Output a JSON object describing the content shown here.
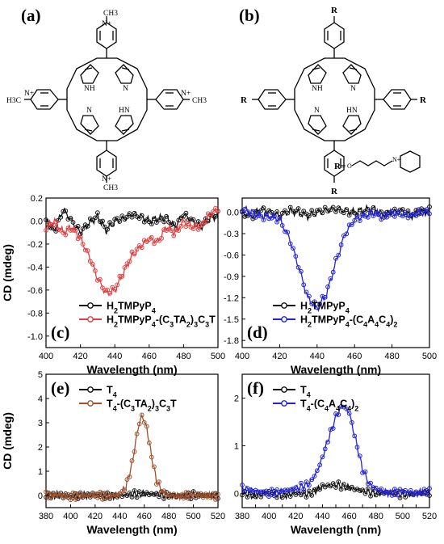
{
  "panels": {
    "a": "(a)",
    "b": "(b)",
    "c": "(c)",
    "d": "(d)",
    "e": "(e)",
    "f": "(f)"
  },
  "structure_labels": {
    "a": {
      "top_me": "CH3",
      "top_n": "N+",
      "left_me": "H3C",
      "left_n": "N+",
      "right_n": "N+",
      "right_me": "CH3",
      "bottom_n": "N+",
      "bottom_me": "CH3",
      "nh1": "NH",
      "n1": "N",
      "hn": "HN",
      "n2": "N"
    },
    "b": {
      "r_top": "R",
      "r_left": "R",
      "r_right": "R",
      "r_bottom": "R",
      "nh1": "NH",
      "n1": "N",
      "hn": "HN",
      "n2": "N",
      "r_def": "R=",
      "o": "O",
      "n_plus": "N+"
    }
  },
  "colors": {
    "black_series": "#111111",
    "red_series": "#e04040",
    "blue_series": "#2222dd",
    "brown_series": "#a0522d"
  },
  "chart_data": [
    {
      "id": "c",
      "type": "line",
      "xlabel": "Wavelength (nm)",
      "ylabel": "CD (mdeg)",
      "xlim": [
        400,
        500
      ],
      "ylim": [
        -1.1,
        0.2
      ],
      "xticks": [
        "400",
        "420",
        "440",
        "460",
        "480",
        "500"
      ],
      "yticks": [
        "0.2",
        "0.0",
        "-0.2",
        "-0.4",
        "-0.6",
        "-0.8",
        "-1.0"
      ],
      "legend_position": "bottom-left",
      "series": [
        {
          "name": "H2TMPyP4",
          "color": "#111111",
          "x": [
            400,
            405,
            410,
            415,
            420,
            425,
            430,
            435,
            440,
            445,
            450,
            455,
            460,
            465,
            470,
            475,
            480,
            485,
            490,
            495,
            500
          ],
          "y": [
            0.0,
            -0.08,
            0.1,
            0.0,
            -0.1,
            -0.02,
            0.04,
            -0.08,
            0.0,
            0.02,
            0.06,
            0.04,
            0.0,
            0.02,
            0.03,
            -0.05,
            0.06,
            0.0,
            -0.05,
            0.02,
            0.05
          ]
        },
        {
          "name": "H2TMPyP4-(C3TA2)3C3T",
          "color": "#e04040",
          "x": [
            400,
            405,
            410,
            415,
            420,
            425,
            430,
            435,
            440,
            445,
            450,
            455,
            460,
            465,
            470,
            475,
            480,
            485,
            490,
            495,
            500
          ],
          "y": [
            -0.05,
            0.0,
            -0.1,
            -0.05,
            -0.15,
            -0.3,
            -0.5,
            -0.63,
            -0.6,
            -0.45,
            -0.3,
            -0.22,
            -0.15,
            -0.18,
            -0.05,
            -0.1,
            0.0,
            -0.05,
            -0.05,
            0.05,
            0.1
          ]
        }
      ]
    },
    {
      "id": "d",
      "type": "line",
      "xlabel": "Wavelength (nm)",
      "ylabel": "",
      "xlim": [
        400,
        500
      ],
      "ylim": [
        -1.9,
        0.2
      ],
      "xticks": [
        "400",
        "420",
        "440",
        "460",
        "480",
        "500"
      ],
      "yticks": [
        "0.0",
        "-0.3",
        "-0.6",
        "-0.9",
        "-1.2",
        "-1.5",
        "-1.8"
      ],
      "legend_position": "bottom-left",
      "series": [
        {
          "name": "H2TMPyP4",
          "color": "#111111",
          "x": [
            400,
            405,
            410,
            415,
            420,
            425,
            430,
            435,
            440,
            445,
            450,
            455,
            460,
            465,
            470,
            475,
            480,
            485,
            490,
            495,
            500
          ],
          "y": [
            0.0,
            -0.05,
            0.05,
            0.0,
            -0.05,
            0.02,
            0.0,
            -0.05,
            0.0,
            0.03,
            0.05,
            0.02,
            0.0,
            0.03,
            0.05,
            -0.03,
            0.0,
            0.02,
            -0.05,
            0.0,
            0.02
          ]
        },
        {
          "name": "H2TMPyP4-(C4A4C4)2",
          "color": "#2222dd",
          "x": [
            400,
            405,
            410,
            415,
            420,
            425,
            430,
            435,
            440,
            445,
            450,
            455,
            460,
            465,
            470,
            475,
            480,
            485,
            490,
            495,
            500
          ],
          "y": [
            0.05,
            0.0,
            -0.05,
            -0.05,
            -0.1,
            -0.35,
            -0.75,
            -1.2,
            -1.35,
            -1.15,
            -0.7,
            -0.3,
            -0.1,
            -0.05,
            0.0,
            -0.05,
            0.0,
            -0.02,
            -0.05,
            0.0,
            0.0
          ]
        }
      ]
    },
    {
      "id": "e",
      "type": "line",
      "xlabel": "Wavelength (nm)",
      "ylabel": "CD (mdeg)",
      "xlim": [
        380,
        520
      ],
      "ylim": [
        -0.5,
        5
      ],
      "xticks": [
        "380",
        "400",
        "420",
        "440",
        "460",
        "480",
        "500",
        "520"
      ],
      "yticks": [
        "0",
        "1",
        "2",
        "3",
        "4",
        "5"
      ],
      "legend_position": "top-left",
      "series": [
        {
          "name": "T4",
          "color": "#111111",
          "x": [
            380,
            390,
            400,
            410,
            420,
            430,
            440,
            450,
            460,
            470,
            480,
            490,
            500,
            510,
            520
          ],
          "y": [
            0.0,
            0.02,
            -0.03,
            0.0,
            0.03,
            -0.02,
            0.0,
            0.05,
            0.08,
            0.05,
            0.0,
            -0.03,
            0.02,
            0.0,
            0.01
          ]
        },
        {
          "name": "T4-(C3TA2)3C3T",
          "color": "#a0522d",
          "x": [
            380,
            390,
            400,
            410,
            420,
            430,
            440,
            445,
            450,
            455,
            458,
            462,
            466,
            470,
            475,
            480,
            490,
            500,
            510,
            520
          ],
          "y": [
            0.0,
            0.03,
            -0.05,
            0.0,
            0.02,
            -0.03,
            0.05,
            0.35,
            1.3,
            2.8,
            3.3,
            2.8,
            1.6,
            0.6,
            0.15,
            0.0,
            -0.02,
            0.02,
            0.0,
            -0.05
          ]
        }
      ]
    },
    {
      "id": "f",
      "type": "line",
      "xlabel": "Wavelength (nm)",
      "ylabel": "",
      "xlim": [
        380,
        520
      ],
      "ylim": [
        -0.3,
        2.5
      ],
      "xticks": [
        "380",
        "390",
        "400",
        "410",
        "420",
        "430",
        "440",
        "450",
        "460",
        "470",
        "480",
        "490",
        "500",
        "510",
        "520"
      ],
      "yticks": [
        "0",
        "1",
        "2"
      ],
      "legend_position": "top-left",
      "series": [
        {
          "name": "T4",
          "color": "#111111",
          "x": [
            380,
            390,
            400,
            410,
            420,
            430,
            440,
            450,
            460,
            470,
            480,
            490,
            500,
            510,
            520
          ],
          "y": [
            0.0,
            -0.05,
            0.02,
            -0.05,
            0.0,
            -0.02,
            0.15,
            0.18,
            0.12,
            0.05,
            0.0,
            0.02,
            -0.03,
            0.0,
            0.02
          ]
        },
        {
          "name": "T4-(C4A4C4)2",
          "color": "#2222dd",
          "x": [
            380,
            390,
            400,
            410,
            420,
            430,
            435,
            440,
            445,
            450,
            455,
            460,
            465,
            470,
            475,
            480,
            490,
            500,
            510,
            520
          ],
          "y": [
            0.1,
            0.05,
            0.0,
            0.05,
            0.1,
            0.2,
            0.4,
            0.75,
            1.2,
            1.6,
            1.85,
            1.7,
            1.1,
            0.5,
            0.2,
            0.1,
            0.0,
            0.05,
            0.0,
            0.05
          ]
        }
      ]
    }
  ]
}
